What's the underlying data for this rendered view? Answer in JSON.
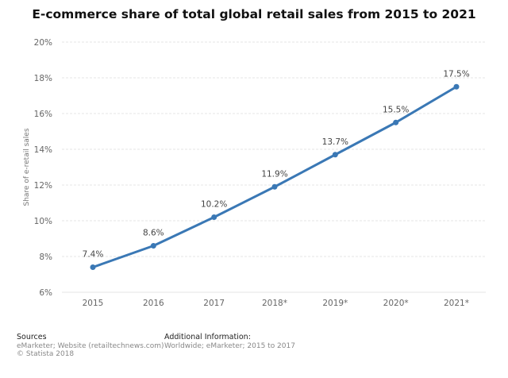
{
  "chart_data": {
    "type": "line",
    "title": "E-commerce share of total global retail sales from 2015 to 2021",
    "ylabel": "Share of e-retail sales",
    "xlabel": "",
    "categories": [
      "2015",
      "2016",
      "2017",
      "2018*",
      "2019*",
      "2020*",
      "2021*"
    ],
    "series": [
      {
        "values": [
          7.4,
          8.6,
          10.2,
          11.9,
          13.7,
          15.5,
          17.5
        ],
        "labels": [
          "7.4%",
          "8.6%",
          "10.2%",
          "11.9%",
          "13.7%",
          "15.5%",
          "17.5%"
        ]
      }
    ],
    "ylim": [
      6,
      20
    ],
    "yticks": [
      6,
      8,
      10,
      12,
      14,
      16,
      18,
      20
    ],
    "ytick_labels": [
      "6%",
      "8%",
      "10%",
      "12%",
      "14%",
      "16%",
      "18%",
      "20%"
    ],
    "grid": true,
    "legend": "none",
    "line_color": "#3a78b5"
  },
  "footer": {
    "sources_heading": "Sources",
    "sources_text": "eMarketer; Website (retailtechnews.com)",
    "copyright": "© Statista 2018",
    "additional_heading": "Additional Information:",
    "additional_text": "Worldwide; eMarketer; 2015 to 2017"
  }
}
